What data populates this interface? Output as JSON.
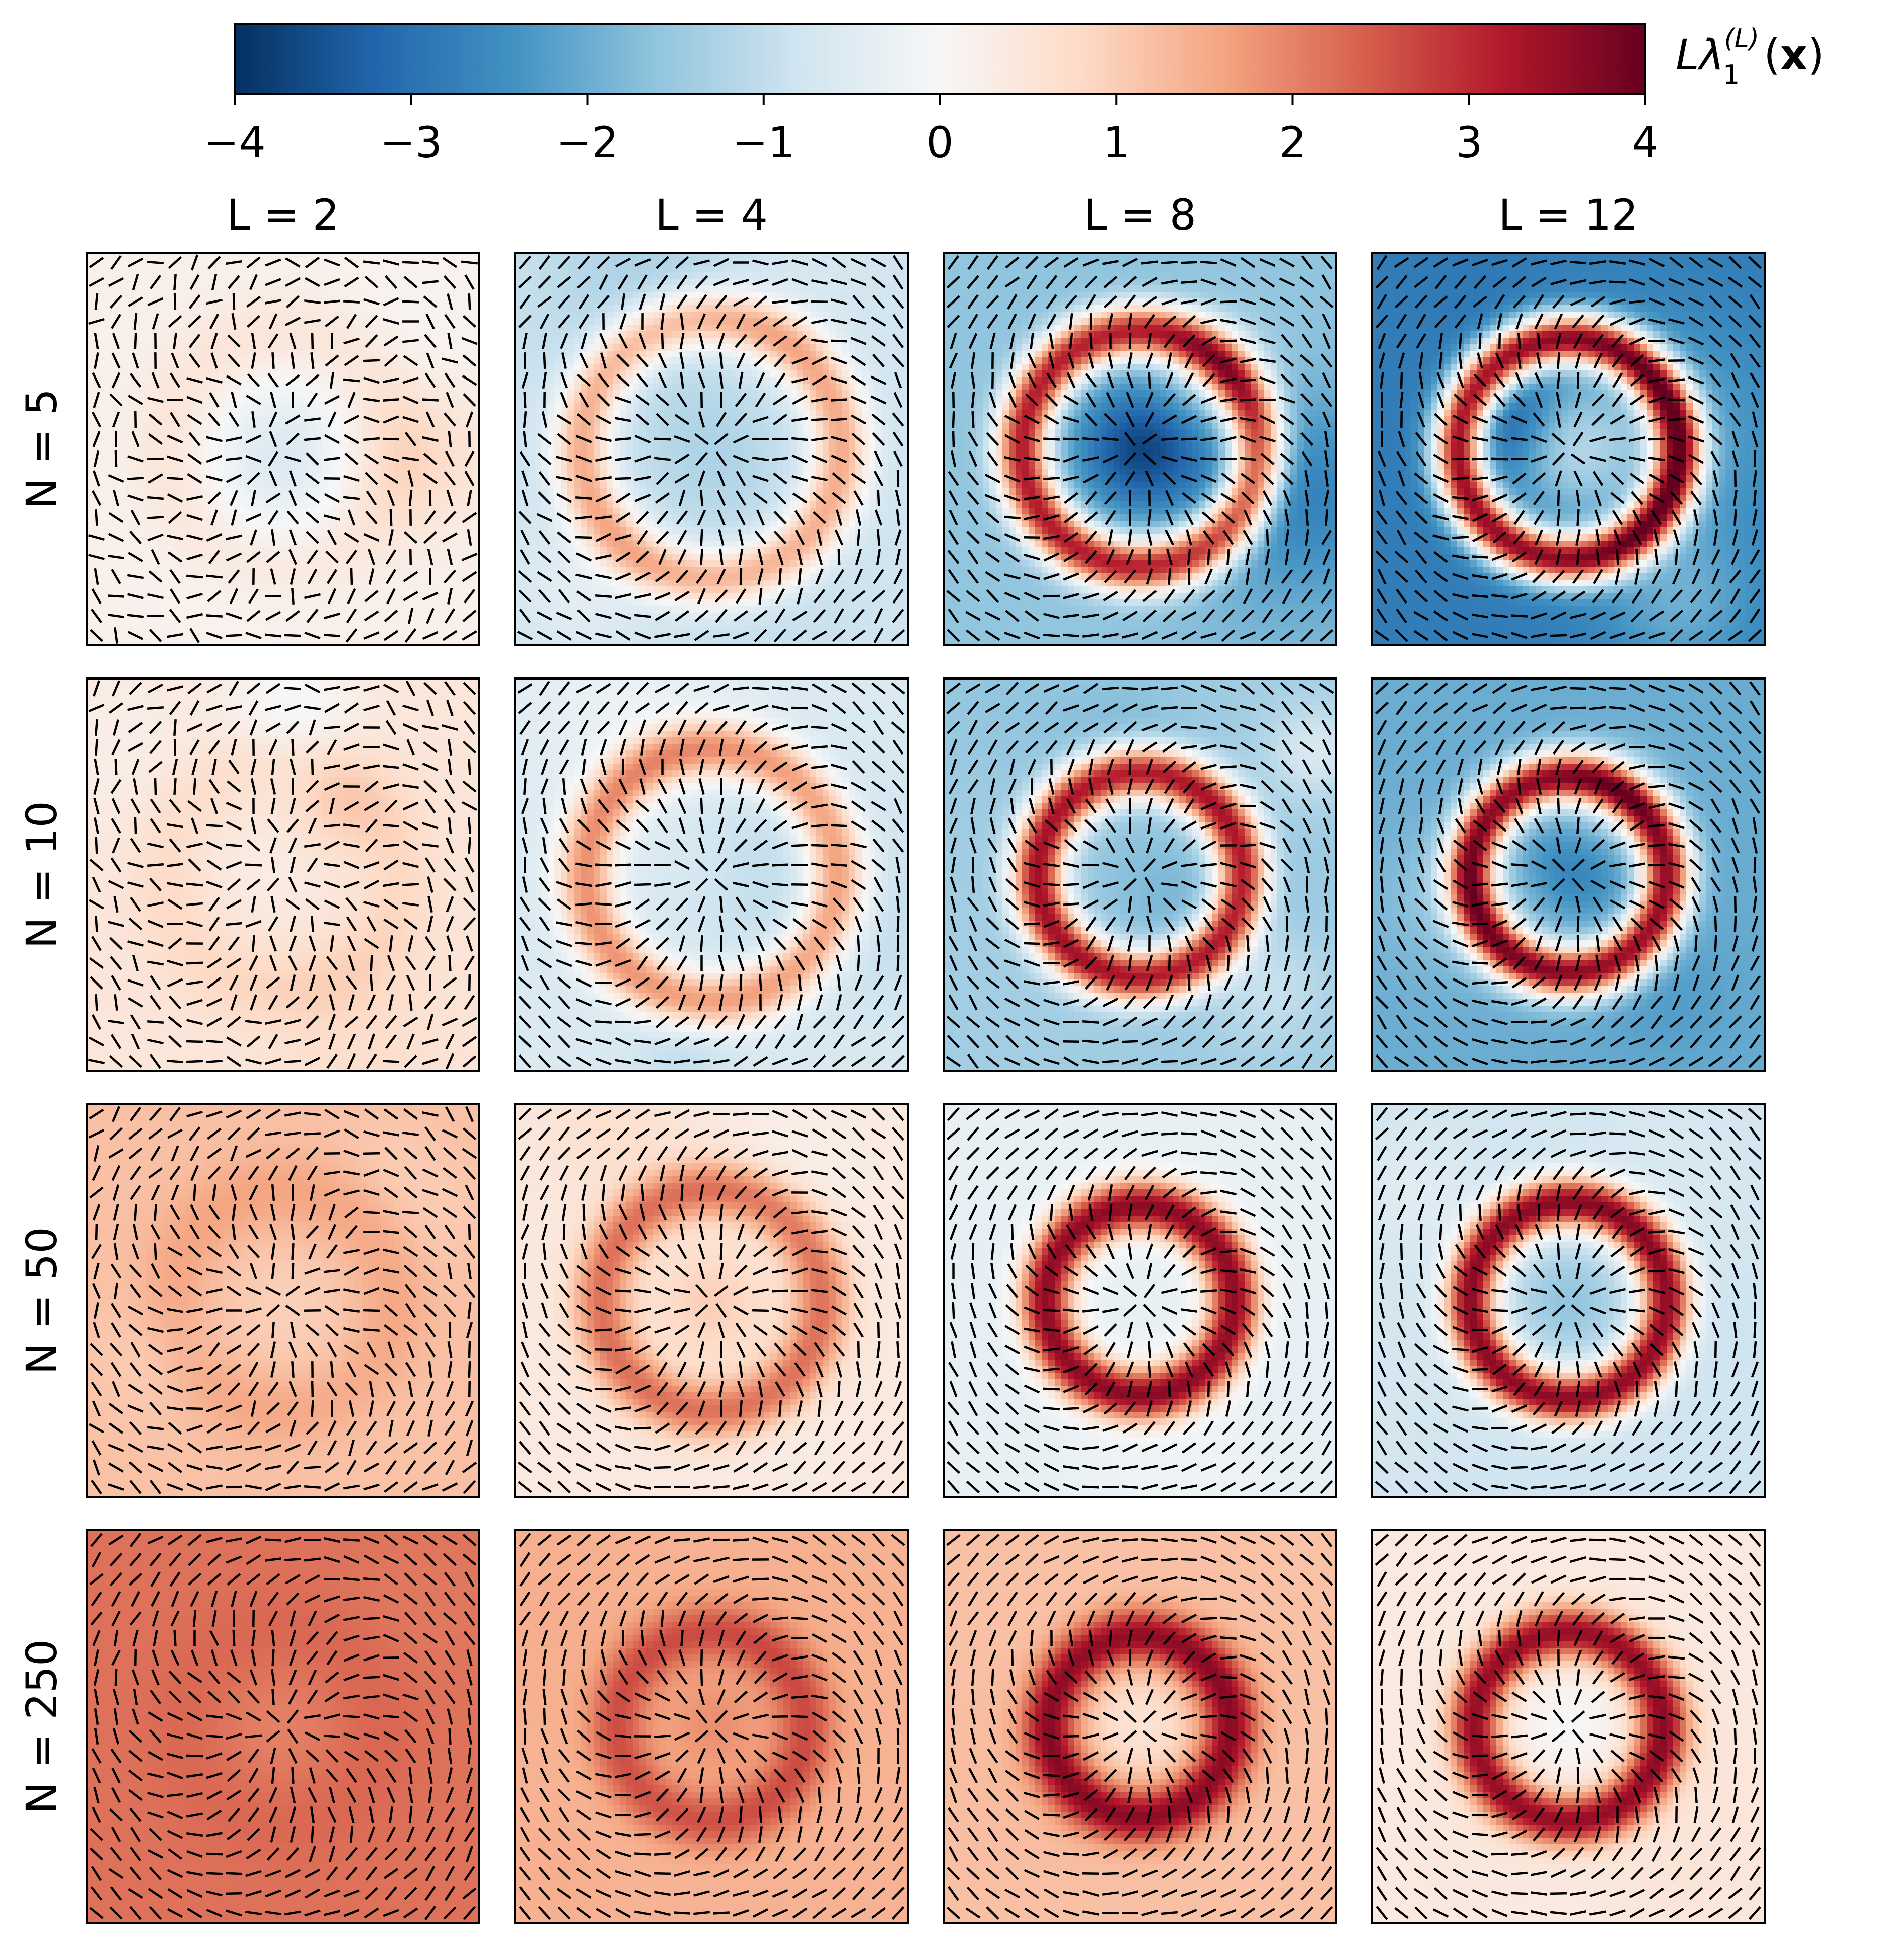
{
  "chart_data": {
    "type": "heatmap",
    "title": "",
    "colorbar": {
      "label_main": "Lλ",
      "label_sup": "(L)",
      "label_sub": "1",
      "label_args": "(",
      "label_var": "x",
      "label_close": ")",
      "range": [
        -4,
        4
      ],
      "ticks": [
        -4,
        -3,
        -2,
        -1,
        0,
        1,
        2,
        3,
        4
      ],
      "tick_labels": [
        "−4",
        "−3",
        "−2",
        "−1",
        "0",
        "1",
        "2",
        "3",
        "4"
      ],
      "colormap": "RdBu_r",
      "stops": [
        "#053061",
        "#2166ac",
        "#4393c3",
        "#92c5de",
        "#d1e5f0",
        "#f7f7f7",
        "#fddbc7",
        "#f4a582",
        "#d6604d",
        "#b2182b",
        "#67001f"
      ]
    },
    "columns": [
      {
        "label": "L = 2",
        "L": 2
      },
      {
        "label": "L = 4",
        "L": 4
      },
      {
        "label": "L = 8",
        "L": 8
      },
      {
        "label": "L = 12",
        "L": 12
      }
    ],
    "rows": [
      {
        "label": "N = 5",
        "N": 5
      },
      {
        "label": "N = 10",
        "N": 10
      },
      {
        "label": "N = 50",
        "N": 50
      },
      {
        "label": "N = 250",
        "N": 250
      }
    ],
    "panels": [
      [
        {
          "background": 0.2,
          "ring_value": 0.5,
          "ring_radius": 0.3,
          "center_value": -0.5,
          "noise": 0.6,
          "disorder": 0.8
        },
        {
          "background": -0.8,
          "ring_value": 1.5,
          "ring_radius": 0.33,
          "center_value": -1.2,
          "noise": 0.6,
          "disorder": 0.3
        },
        {
          "background": -1.6,
          "ring_value": 3.2,
          "ring_radius": 0.3,
          "center_value": -3.5,
          "noise": 1.2,
          "disorder": 0.25
        },
        {
          "background": -2.8,
          "ring_value": 3.5,
          "ring_radius": 0.28,
          "center_value": -1.5,
          "noise": 0.8,
          "disorder": 0.2
        }
      ],
      [
        {
          "background": 0.5,
          "ring_value": 0.8,
          "ring_radius": 0.3,
          "center_value": 0.3,
          "noise": 0.6,
          "disorder": 0.7
        },
        {
          "background": -0.6,
          "ring_value": 1.8,
          "ring_radius": 0.32,
          "center_value": -0.5,
          "noise": 0.5,
          "disorder": 0.25
        },
        {
          "background": -1.4,
          "ring_value": 3.4,
          "ring_radius": 0.26,
          "center_value": -1.6,
          "noise": 0.9,
          "disorder": 0.25
        },
        {
          "background": -2.0,
          "ring_value": 3.5,
          "ring_radius": 0.25,
          "center_value": -3.2,
          "noise": 0.7,
          "disorder": 0.2
        }
      ],
      [
        {
          "background": 1.2,
          "ring_value": 1.6,
          "ring_radius": 0.28,
          "center_value": 1.0,
          "noise": 0.2,
          "disorder": 0.45
        },
        {
          "background": 0.4,
          "ring_value": 2.2,
          "ring_radius": 0.28,
          "center_value": 1.0,
          "noise": 0.3,
          "disorder": 0.2
        },
        {
          "background": -0.3,
          "ring_value": 3.6,
          "ring_radius": 0.24,
          "center_value": -0.3,
          "noise": 0.3,
          "disorder": 0.15
        },
        {
          "background": -0.8,
          "ring_value": 3.6,
          "ring_radius": 0.25,
          "center_value": -1.6,
          "noise": 0.4,
          "disorder": 0.15
        }
      ],
      [
        {
          "background": 2.2,
          "ring_value": 2.3,
          "ring_radius": 0.26,
          "center_value": 2.0,
          "noise": 0.1,
          "disorder": 0.25
        },
        {
          "background": 1.4,
          "ring_value": 2.6,
          "ring_radius": 0.24,
          "center_value": 1.8,
          "noise": 0.15,
          "disorder": 0.15
        },
        {
          "background": 1.2,
          "ring_value": 3.6,
          "ring_radius": 0.23,
          "center_value": 0.6,
          "noise": 0.15,
          "disorder": 0.15
        },
        {
          "background": 0.4,
          "ring_value": 3.5,
          "ring_radius": 0.24,
          "center_value": 0.0,
          "noise": 0.15,
          "disorder": 0.15
        }
      ]
    ]
  }
}
